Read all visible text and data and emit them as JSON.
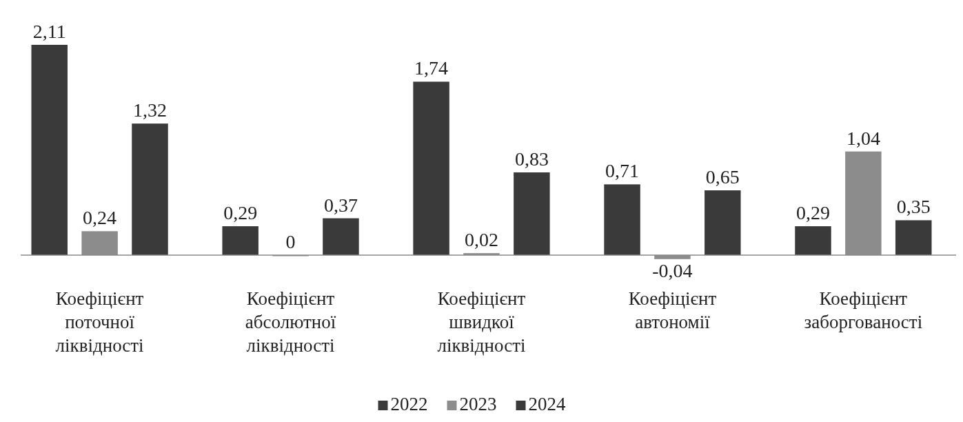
{
  "chart_data": {
    "type": "bar",
    "relative": false,
    "categories": [
      "Коефіцієнт поточної ліквідності",
      "Коефіцієнт абсолютної ліквідності",
      "Коефіцієнт швидкої ліквідності",
      "Коефіцієнт автономії",
      "Коефіцієнт заборгованості"
    ],
    "series": [
      {
        "name": "2022",
        "color": "#3a3a3a",
        "values": [
          2.11,
          0.29,
          1.74,
          0.71,
          0.29
        ],
        "value_labels": [
          "2,11",
          "0,29",
          "1,74",
          "0,71",
          "0,29"
        ]
      },
      {
        "name": "2023",
        "color": "#8c8c8c",
        "values": [
          0.24,
          0,
          0.02,
          -0.04,
          1.04
        ],
        "value_labels": [
          "0,24",
          "0",
          "0,02",
          "-0,04",
          "1,04"
        ]
      },
      {
        "name": "2024",
        "color": "#3a3a3a",
        "values": [
          1.32,
          0.37,
          0.83,
          0.65,
          0.35
        ],
        "value_labels": [
          "1,32",
          "0,37",
          "0,83",
          "0,65",
          "0,35"
        ]
      }
    ],
    "legend": "bottom"
  }
}
